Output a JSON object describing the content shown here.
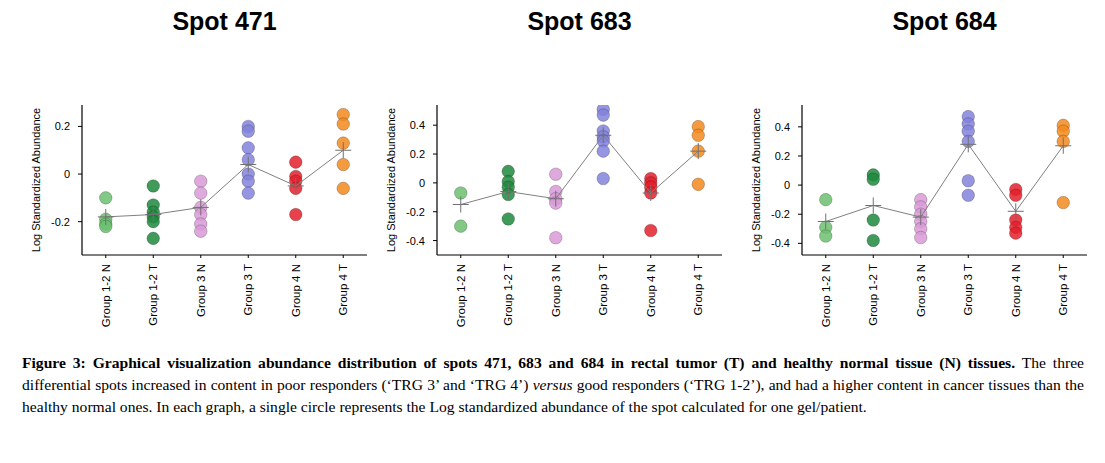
{
  "chart_data": [
    {
      "type": "strip",
      "title": "Spot 471",
      "y_label": "Log Standardized Abundance",
      "categories": [
        "Group 1-2 N",
        "Group 1-2 T",
        "Group 3 N",
        "Group 3 T",
        "Group 4 N",
        "Group 4 T"
      ],
      "colors": [
        "#6cc070",
        "#1f8a3e",
        "#d99ad8",
        "#8282dc",
        "#e3202b",
        "#f28a1e"
      ],
      "values": [
        [
          -0.1,
          -0.19,
          -0.21,
          -0.22
        ],
        [
          -0.05,
          -0.13,
          -0.16,
          -0.18,
          -0.2,
          -0.27
        ],
        [
          -0.03,
          -0.08,
          -0.14,
          -0.17,
          -0.21,
          -0.24
        ],
        [
          0.2,
          0.18,
          0.11,
          0.06,
          0.0,
          -0.03,
          -0.08
        ],
        [
          0.05,
          -0.01,
          -0.03,
          -0.06,
          -0.17
        ],
        [
          0.25,
          0.21,
          0.13,
          0.04,
          -0.06
        ]
      ],
      "means": [
        -0.18,
        -0.17,
        -0.14,
        0.04,
        -0.05,
        0.1
      ],
      "ylim": [
        -0.34,
        0.29
      ],
      "yticks": [
        -0.2,
        0,
        0.2
      ],
      "grid": false
    },
    {
      "type": "strip",
      "title": "Spot 683",
      "y_label": "Log Standardized Abundance",
      "categories": [
        "Group 1-2 N",
        "Group 1-2 T",
        "Group 3 N",
        "Group 3 T",
        "Group 4 N",
        "Group 4 T"
      ],
      "colors": [
        "#6cc070",
        "#1f8a3e",
        "#d99ad8",
        "#8282dc",
        "#e3202b",
        "#f28a1e"
      ],
      "values": [
        [
          -0.07,
          -0.3
        ],
        [
          0.08,
          0.01,
          -0.03,
          -0.08,
          -0.25
        ],
        [
          0.06,
          -0.06,
          -0.11,
          -0.14,
          -0.38
        ],
        [
          0.51,
          0.47,
          0.36,
          0.32,
          0.29,
          0.22,
          0.03
        ],
        [
          0.03,
          0.0,
          -0.03,
          -0.07,
          -0.33
        ],
        [
          0.39,
          0.33,
          0.22,
          -0.01
        ]
      ],
      "means": [
        -0.15,
        -0.06,
        -0.11,
        0.33,
        -0.07,
        0.22
      ],
      "ylim": [
        -0.5,
        0.54
      ],
      "yticks": [
        -0.4,
        -0.2,
        0,
        0.2,
        0.4
      ],
      "grid": false
    },
    {
      "type": "strip",
      "title": "Spot 684",
      "y_label": "Log Standardized Abundance",
      "categories": [
        "Group 1-2 N",
        "Group 1-2 T",
        "Group 3 N",
        "Group 3 T",
        "Group 4 N",
        "Group 4 T"
      ],
      "colors": [
        "#6cc070",
        "#1f8a3e",
        "#d99ad8",
        "#8282dc",
        "#e3202b",
        "#f28a1e"
      ],
      "values": [
        [
          -0.1,
          -0.29,
          -0.35
        ],
        [
          0.07,
          0.04,
          -0.24,
          -0.38
        ],
        [
          -0.1,
          -0.15,
          -0.2,
          -0.25,
          -0.3,
          -0.36
        ],
        [
          0.47,
          0.42,
          0.37,
          0.3,
          0.03,
          -0.07
        ],
        [
          -0.03,
          -0.07,
          -0.24,
          -0.29,
          -0.33
        ],
        [
          0.41,
          0.37,
          0.3,
          -0.12
        ]
      ],
      "means": [
        -0.25,
        -0.14,
        -0.22,
        0.28,
        -0.18,
        0.27
      ],
      "ylim": [
        -0.48,
        0.55
      ],
      "yticks": [
        -0.4,
        -0.2,
        0,
        0.2,
        0.4
      ],
      "grid": false
    }
  ],
  "caption": {
    "heading": "Figure 3: Graphical visualization abundance distribution of spots 471, 683 and 684 in rectal tumor (T) and healthy normal tissue (N) tissues.",
    "segments": [
      {
        "text": " The three differential spots increased in content in poor responders (‘TRG 3’ and ‘TRG 4’) ",
        "italic": false
      },
      {
        "text": "versus",
        "italic": true
      },
      {
        "text": " good responders (‘TRG 1-2’), and had a higher content in cancer tissues than the healthy normal ones. In each graph, a single circle represents the Log standardized abundance of the spot calculated for one gel/patient.",
        "italic": false
      }
    ]
  }
}
